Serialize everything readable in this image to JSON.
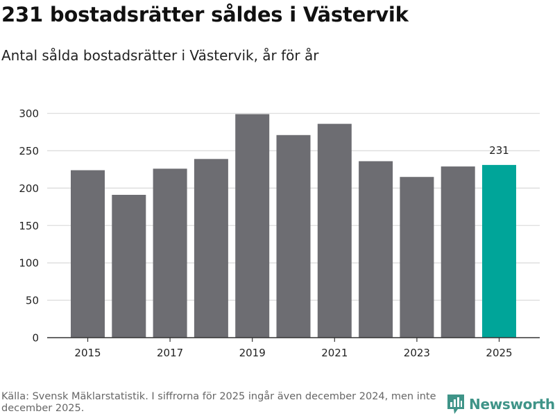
{
  "header": {
    "title": "231 bostadsrätter såldes i Västervik",
    "subtitle": "Antal sålda bostadsrätter i Västervik, år för år"
  },
  "chart_data": {
    "type": "bar",
    "title": "231 bostadsrätter såldes i Västervik",
    "subtitle": "Antal sålda bostadsrätter i Västervik, år för år",
    "xlabel": "",
    "ylabel": "",
    "categories": [
      "2015",
      "2016",
      "2017",
      "2018",
      "2019",
      "2020",
      "2021",
      "2022",
      "2023",
      "2024",
      "2025"
    ],
    "values": [
      224,
      191,
      226,
      239,
      299,
      271,
      286,
      236,
      215,
      229,
      231
    ],
    "x_tick_labels": [
      "2015",
      "2017",
      "2019",
      "2021",
      "2023",
      "2025"
    ],
    "y_ticks": [
      0,
      50,
      100,
      150,
      200,
      250,
      300
    ],
    "ylim": [
      0,
      310
    ],
    "grid": true,
    "highlight_category": "2025",
    "data_labels": [
      {
        "category": "2025",
        "text": "231"
      }
    ],
    "colors": {
      "default": "#6d6d72",
      "highlight": "#00a599",
      "grid": "#dddddd",
      "axis": "#333333"
    }
  },
  "footer": {
    "source": "Källa: Svensk Mäklarstatistik. I siffrorna för 2025 ingår även december 2024, men inte december 2025.",
    "brand": "Newsworthy",
    "brand_icon": "newsworthy-logo-icon"
  }
}
